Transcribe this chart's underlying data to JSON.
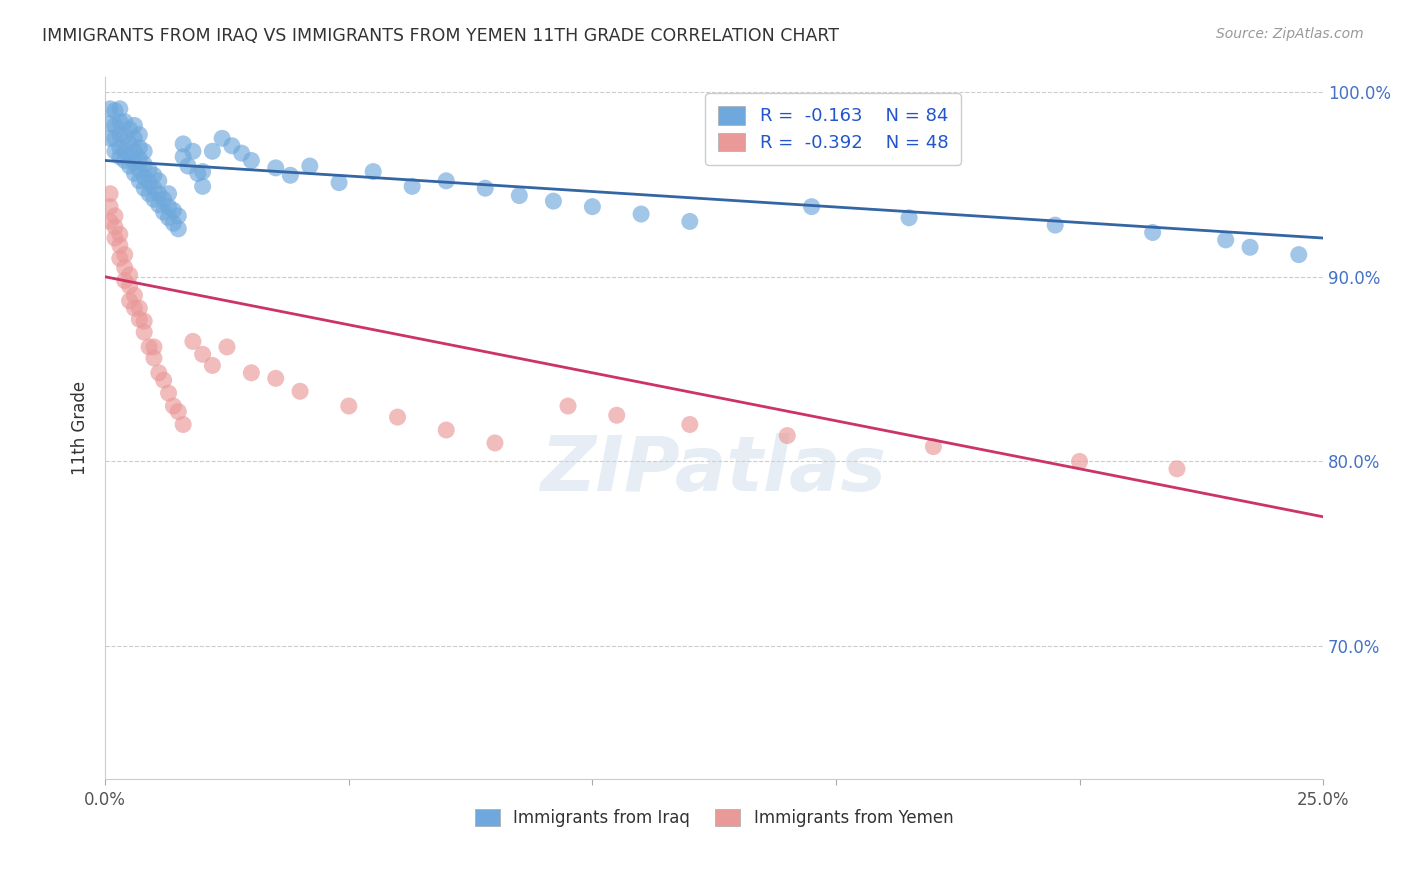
{
  "title": "IMMIGRANTS FROM IRAQ VS IMMIGRANTS FROM YEMEN 11TH GRADE CORRELATION CHART",
  "source": "Source: ZipAtlas.com",
  "ylabel": "11th Grade",
  "x_min": 0.0,
  "x_max": 0.25,
  "y_min": 0.628,
  "y_max": 1.008,
  "x_ticks": [
    0.0,
    0.05,
    0.1,
    0.15,
    0.2,
    0.25
  ],
  "x_tick_labels": [
    "0.0%",
    "",
    "",
    "",
    "",
    "25.0%"
  ],
  "y_ticks": [
    0.7,
    0.8,
    0.9,
    1.0
  ],
  "y_tick_labels": [
    "70.0%",
    "80.0%",
    "90.0%",
    "100.0%"
  ],
  "iraq_color": "#6fa8dc",
  "iraq_color_line": "#3465a4",
  "yemen_color": "#ea9999",
  "yemen_color_line": "#cc3366",
  "watermark": "ZIPatlas",
  "iraq_line_x0": 0.0,
  "iraq_line_y0": 0.963,
  "iraq_line_x1": 0.25,
  "iraq_line_y1": 0.921,
  "yemen_line_x0": 0.0,
  "yemen_line_y0": 0.9,
  "yemen_line_x1": 0.25,
  "yemen_line_y1": 0.77,
  "iraq_x": [
    0.001,
    0.001,
    0.001,
    0.002,
    0.002,
    0.002,
    0.002,
    0.003,
    0.003,
    0.003,
    0.003,
    0.003,
    0.004,
    0.004,
    0.004,
    0.004,
    0.005,
    0.005,
    0.005,
    0.005,
    0.006,
    0.006,
    0.006,
    0.006,
    0.006,
    0.007,
    0.007,
    0.007,
    0.007,
    0.007,
    0.008,
    0.008,
    0.008,
    0.008,
    0.009,
    0.009,
    0.009,
    0.01,
    0.01,
    0.01,
    0.011,
    0.011,
    0.011,
    0.012,
    0.012,
    0.013,
    0.013,
    0.013,
    0.014,
    0.014,
    0.015,
    0.015,
    0.016,
    0.016,
    0.017,
    0.018,
    0.019,
    0.02,
    0.02,
    0.022,
    0.024,
    0.026,
    0.028,
    0.03,
    0.035,
    0.038,
    0.042,
    0.048,
    0.055,
    0.063,
    0.07,
    0.078,
    0.085,
    0.092,
    0.1,
    0.11,
    0.12,
    0.145,
    0.165,
    0.195,
    0.215,
    0.23,
    0.235,
    0.245
  ],
  "iraq_y": [
    0.975,
    0.983,
    0.991,
    0.968,
    0.975,
    0.982,
    0.99,
    0.965,
    0.97,
    0.977,
    0.984,
    0.991,
    0.963,
    0.968,
    0.976,
    0.984,
    0.96,
    0.965,
    0.972,
    0.98,
    0.956,
    0.962,
    0.968,
    0.975,
    0.982,
    0.952,
    0.958,
    0.964,
    0.97,
    0.977,
    0.948,
    0.954,
    0.961,
    0.968,
    0.945,
    0.951,
    0.958,
    0.942,
    0.948,
    0.955,
    0.939,
    0.945,
    0.952,
    0.935,
    0.942,
    0.932,
    0.938,
    0.945,
    0.929,
    0.936,
    0.926,
    0.933,
    0.965,
    0.972,
    0.96,
    0.968,
    0.956,
    0.949,
    0.957,
    0.968,
    0.975,
    0.971,
    0.967,
    0.963,
    0.959,
    0.955,
    0.96,
    0.951,
    0.957,
    0.949,
    0.952,
    0.948,
    0.944,
    0.941,
    0.938,
    0.934,
    0.93,
    0.938,
    0.932,
    0.928,
    0.924,
    0.92,
    0.916,
    0.912
  ],
  "yemen_x": [
    0.001,
    0.001,
    0.001,
    0.002,
    0.002,
    0.002,
    0.003,
    0.003,
    0.003,
    0.004,
    0.004,
    0.004,
    0.005,
    0.005,
    0.005,
    0.006,
    0.006,
    0.007,
    0.007,
    0.008,
    0.008,
    0.009,
    0.01,
    0.01,
    0.011,
    0.012,
    0.013,
    0.014,
    0.015,
    0.016,
    0.018,
    0.02,
    0.022,
    0.025,
    0.03,
    0.035,
    0.04,
    0.05,
    0.06,
    0.07,
    0.08,
    0.095,
    0.105,
    0.12,
    0.14,
    0.17,
    0.2,
    0.22
  ],
  "yemen_y": [
    0.938,
    0.945,
    0.93,
    0.927,
    0.933,
    0.921,
    0.917,
    0.923,
    0.91,
    0.905,
    0.912,
    0.898,
    0.895,
    0.901,
    0.887,
    0.883,
    0.89,
    0.877,
    0.883,
    0.87,
    0.876,
    0.862,
    0.856,
    0.862,
    0.848,
    0.844,
    0.837,
    0.83,
    0.827,
    0.82,
    0.865,
    0.858,
    0.852,
    0.862,
    0.848,
    0.845,
    0.838,
    0.83,
    0.824,
    0.817,
    0.81,
    0.83,
    0.825,
    0.82,
    0.814,
    0.808,
    0.8,
    0.796
  ]
}
